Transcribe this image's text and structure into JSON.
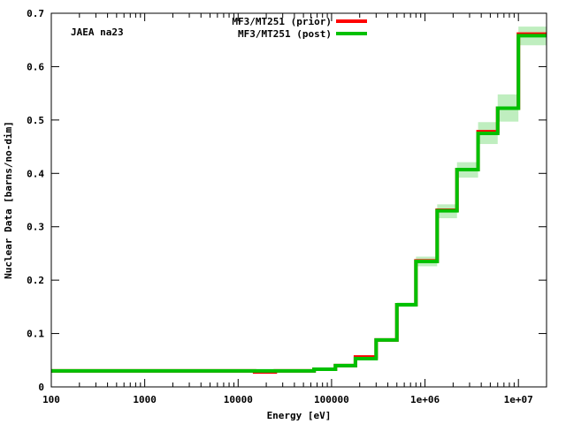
{
  "chart_data": {
    "type": "line",
    "annotation": "JAEA na23",
    "xlabel": "Energy [eV]",
    "ylabel": "Nuclear Data [barns/no-dim]",
    "xscale": "log",
    "xlim": [
      100,
      20000000
    ],
    "ylim": [
      0,
      0.7
    ],
    "x_ticks": [
      {
        "value": 100,
        "label": "100"
      },
      {
        "value": 1000,
        "label": "1000"
      },
      {
        "value": 10000,
        "label": "10000"
      },
      {
        "value": 100000,
        "label": "100000"
      },
      {
        "value": 1000000,
        "label": "1e+06"
      },
      {
        "value": 10000000,
        "label": "1e+07"
      }
    ],
    "y_ticks": [
      {
        "value": 0,
        "label": "0"
      },
      {
        "value": 0.1,
        "label": "0.1"
      },
      {
        "value": 0.2,
        "label": "0.2"
      },
      {
        "value": 0.3,
        "label": "0.3"
      },
      {
        "value": 0.4,
        "label": "0.4"
      },
      {
        "value": 0.5,
        "label": "0.5"
      },
      {
        "value": 0.6,
        "label": "0.6"
      },
      {
        "value": 0.7,
        "label": "0.7"
      }
    ],
    "legend_position": "top-center",
    "bin_edges": [
      100,
      15000,
      25000,
      65000,
      110000,
      180000,
      300000,
      500000,
      800000,
      1350000,
      2200000,
      3700000,
      6000000,
      10000000,
      20000000
    ],
    "series": [
      {
        "name": "MF3/MT251 (prior)",
        "color": "#ff0000",
        "values": [
          0.03,
          0.028,
          0.03,
          0.033,
          0.04,
          0.056,
          0.088,
          0.154,
          0.236,
          0.331,
          0.407,
          0.478,
          0.522,
          0.661
        ]
      },
      {
        "name": "MF3/MT251 (post)",
        "color": "#00c000",
        "values": [
          0.03,
          0.03,
          0.03,
          0.033,
          0.04,
          0.053,
          0.088,
          0.154,
          0.235,
          0.33,
          0.407,
          0.475,
          0.522,
          0.658
        ]
      }
    ],
    "uncertainty_band": {
      "color": "#bfeebf",
      "lower": [
        0.029,
        0.029,
        0.029,
        0.032,
        0.039,
        0.051,
        0.085,
        0.15,
        0.226,
        0.316,
        0.392,
        0.455,
        0.497,
        0.64
      ],
      "upper": [
        0.031,
        0.031,
        0.031,
        0.034,
        0.041,
        0.055,
        0.091,
        0.158,
        0.244,
        0.342,
        0.421,
        0.496,
        0.548,
        0.675
      ]
    }
  }
}
